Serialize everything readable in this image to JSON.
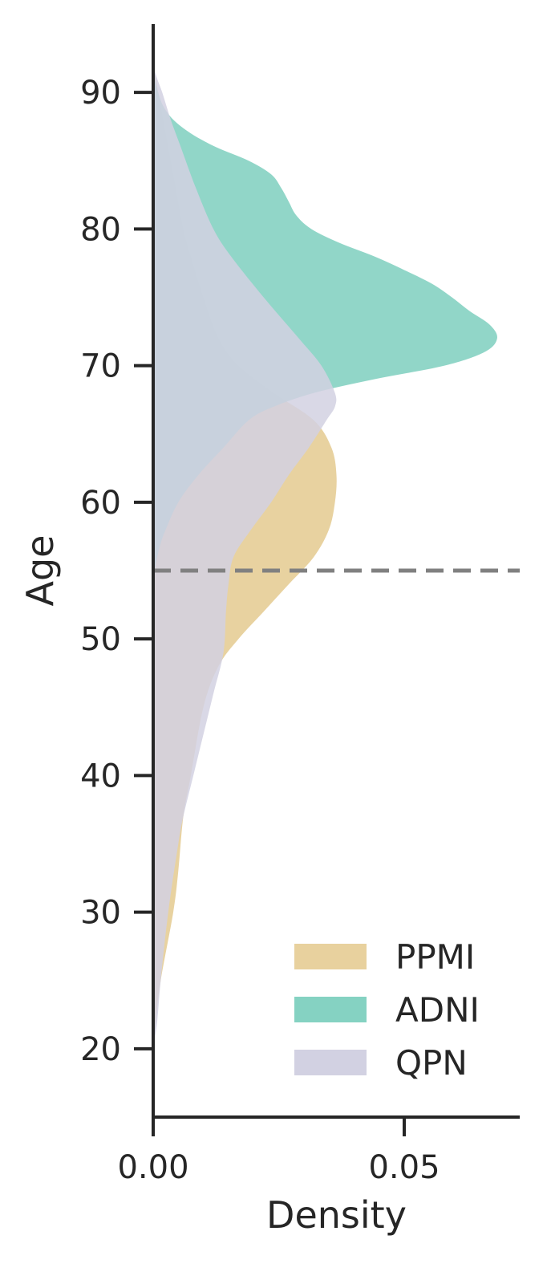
{
  "chart_data": {
    "type": "area",
    "orientation": "horizontal-density",
    "xlabel": "Density",
    "ylabel": "Age",
    "xlim": [
      0,
      0.073
    ],
    "ylim": [
      15,
      95
    ],
    "xticks": [
      0.0,
      0.05
    ],
    "xtick_labels": [
      "0.00",
      "0.05"
    ],
    "yticks": [
      20,
      30,
      40,
      50,
      60,
      70,
      80,
      90
    ],
    "ytick_labels": [
      "20",
      "30",
      "40",
      "50",
      "60",
      "70",
      "80",
      "90"
    ],
    "grid": false,
    "legend": {
      "position": "bottom-right"
    },
    "reference_line": {
      "y": 55,
      "style": "dashed",
      "color": "#808080"
    },
    "series": [
      {
        "name": "PPMI",
        "color": "#e8d19e",
        "points": [
          [
            20,
            0
          ],
          [
            22,
            0.0005
          ],
          [
            25,
            0.0015
          ],
          [
            30,
            0.004
          ],
          [
            33,
            0.005
          ],
          [
            37,
            0.006
          ],
          [
            40,
            0.0075
          ],
          [
            45,
            0.01
          ],
          [
            48,
            0.013
          ],
          [
            50,
            0.017
          ],
          [
            52,
            0.022
          ],
          [
            54,
            0.027
          ],
          [
            56,
            0.032
          ],
          [
            58,
            0.035
          ],
          [
            60,
            0.0362
          ],
          [
            62,
            0.0365
          ],
          [
            64,
            0.0355
          ],
          [
            66,
            0.032
          ],
          [
            68,
            0.024
          ],
          [
            70,
            0.017
          ],
          [
            72,
            0.013
          ],
          [
            75,
            0.01
          ],
          [
            78,
            0.0075
          ],
          [
            80,
            0.006
          ],
          [
            83,
            0.0045
          ],
          [
            86,
            0.003
          ],
          [
            89,
            0.0015
          ],
          [
            91,
            0.0005
          ],
          [
            92,
            0
          ]
        ]
      },
      {
        "name": "ADNI",
        "color": "#85d2c2",
        "points": [
          [
            54,
            0
          ],
          [
            55,
            0.0003
          ],
          [
            56,
            0.0008
          ],
          [
            57,
            0.0015
          ],
          [
            58,
            0.0025
          ],
          [
            60,
            0.005
          ],
          [
            62,
            0.009
          ],
          [
            64,
            0.014
          ],
          [
            66,
            0.019
          ],
          [
            67,
            0.024
          ],
          [
            68,
            0.032
          ],
          [
            69,
            0.044
          ],
          [
            70,
            0.058
          ],
          [
            71,
            0.066
          ],
          [
            72,
            0.0685
          ],
          [
            73,
            0.067
          ],
          [
            74,
            0.063
          ],
          [
            75,
            0.0595
          ],
          [
            76,
            0.0555
          ],
          [
            77,
            0.05
          ],
          [
            78,
            0.044
          ],
          [
            79,
            0.037
          ],
          [
            80,
            0.0315
          ],
          [
            81,
            0.0285
          ],
          [
            82,
            0.027
          ],
          [
            83,
            0.0255
          ],
          [
            84,
            0.0235
          ],
          [
            85,
            0.019
          ],
          [
            86,
            0.0125
          ],
          [
            87,
            0.0075
          ],
          [
            88,
            0.004
          ],
          [
            89,
            0.002
          ],
          [
            90,
            0.001
          ],
          [
            91,
            0.0003
          ],
          [
            92,
            0
          ]
        ]
      },
      {
        "name": "QPN",
        "color": "#d2d1e2",
        "points": [
          [
            20,
            0
          ],
          [
            22,
            0.0008
          ],
          [
            25,
            0.0015
          ],
          [
            30,
            0.003
          ],
          [
            35,
            0.005
          ],
          [
            37,
            0.006
          ],
          [
            40,
            0.008
          ],
          [
            43,
            0.01
          ],
          [
            46,
            0.012
          ],
          [
            49,
            0.014
          ],
          [
            52,
            0.0145
          ],
          [
            54,
            0.015
          ],
          [
            56,
            0.016
          ],
          [
            58,
            0.0195
          ],
          [
            60,
            0.0235
          ],
          [
            62,
            0.027
          ],
          [
            64,
            0.031
          ],
          [
            66,
            0.0345
          ],
          [
            67,
            0.0362
          ],
          [
            68,
            0.0362
          ],
          [
            70,
            0.0335
          ],
          [
            72,
            0.029
          ],
          [
            75,
            0.022
          ],
          [
            78,
            0.0155
          ],
          [
            80,
            0.012
          ],
          [
            83,
            0.0085
          ],
          [
            86,
            0.0055
          ],
          [
            88,
            0.0035
          ],
          [
            90,
            0.0018
          ],
          [
            91,
            0.0008
          ],
          [
            92,
            0
          ]
        ]
      }
    ]
  }
}
